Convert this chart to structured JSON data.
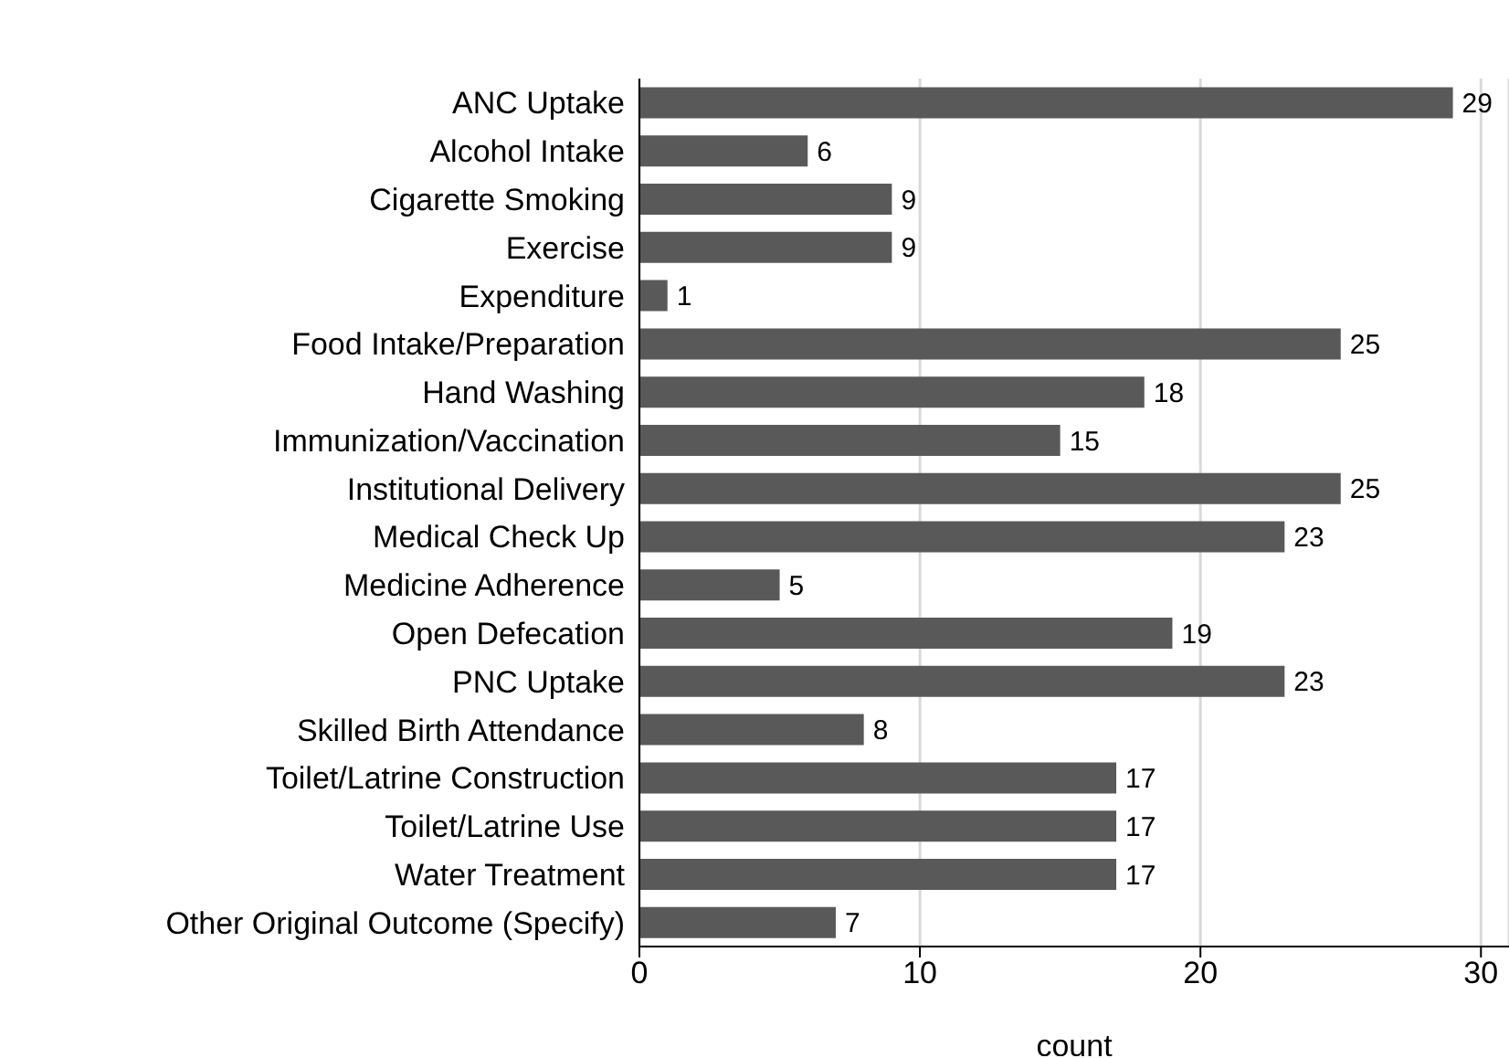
{
  "chart_data": {
    "type": "bar",
    "orientation": "horizontal",
    "xlabel": "count",
    "categories": [
      "ANC Uptake",
      "Alcohol Intake",
      "Cigarette Smoking",
      "Exercise",
      "Expenditure",
      "Food Intake/Preparation",
      "Hand Washing",
      "Immunization/Vaccination",
      "Institutional Delivery",
      "Medical Check Up",
      "Medicine Adherence",
      "Open Defecation",
      "PNC Uptake",
      "Skilled Birth Attendance",
      "Toilet/Latrine Construction",
      "Toilet/Latrine Use",
      "Water Treatment",
      "Other Original Outcome (Specify)"
    ],
    "values": [
      29,
      6,
      9,
      9,
      1,
      25,
      18,
      15,
      25,
      23,
      5,
      19,
      23,
      8,
      17,
      17,
      17,
      7
    ],
    "color": "#595959",
    "xlim": [
      0,
      31
    ],
    "xticks": [
      0,
      10,
      20,
      30
    ],
    "grid": "x",
    "data_labels": true
  }
}
